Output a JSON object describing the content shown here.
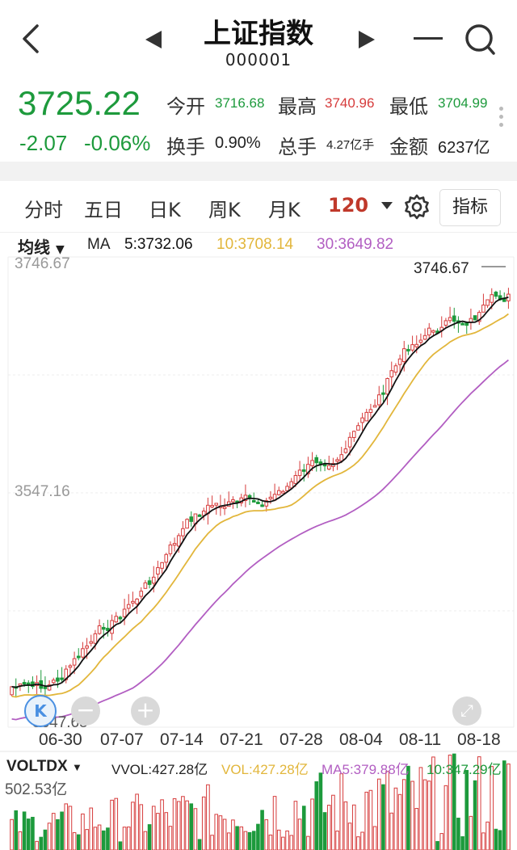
{
  "header": {
    "title": "上证指数",
    "code": "000001"
  },
  "quote": {
    "price": "3725.22",
    "change": "-2.07",
    "change_pct": "-0.06%",
    "open_label": "今开",
    "open": "3716.68",
    "high_label": "最高",
    "high": "3740.96",
    "low_label": "最低",
    "low": "3704.99",
    "turnover_label": "换手",
    "turnover": "0.90%",
    "total_label": "总手",
    "total": "4.27亿手",
    "amount_label": "金额",
    "amount": "6237亿"
  },
  "tabs": [
    {
      "label": "分时"
    },
    {
      "label": "五日"
    },
    {
      "label": "日K"
    },
    {
      "label": "周K"
    },
    {
      "label": "月K"
    },
    {
      "label": "120"
    }
  ],
  "indicator_button": "指标",
  "chart": {
    "ma_selector": "均线",
    "ma_label": "MA",
    "ma5": "5:3732.06",
    "ma10": "10:3708.14",
    "ma30": "30:3649.82",
    "y_top": "3746.67",
    "y_mid": "3547.16",
    "y_bottom": "3347.65",
    "y_left_bottom": "3347.65",
    "max_marker": "3746.67",
    "x_labels": [
      "06-30",
      "07-07",
      "07-14",
      "07-21",
      "07-28",
      "08-04",
      "08-11",
      "08-18"
    ],
    "k_button": "K",
    "zoom_out": "−",
    "zoom_in": "+"
  },
  "volume": {
    "selector": "VOLTDX",
    "vvol": "VVOL:427.28亿",
    "vol": "VOL:427.28亿",
    "ma5": "MA5:379.88亿",
    "ma10": "10:347.29亿",
    "top": "502.53亿"
  },
  "colors": {
    "up": "#d63b3b",
    "down": "#1d9a3c",
    "ma5": "#111111",
    "ma10": "#e2b63b",
    "ma30": "#b25ec2"
  }
}
